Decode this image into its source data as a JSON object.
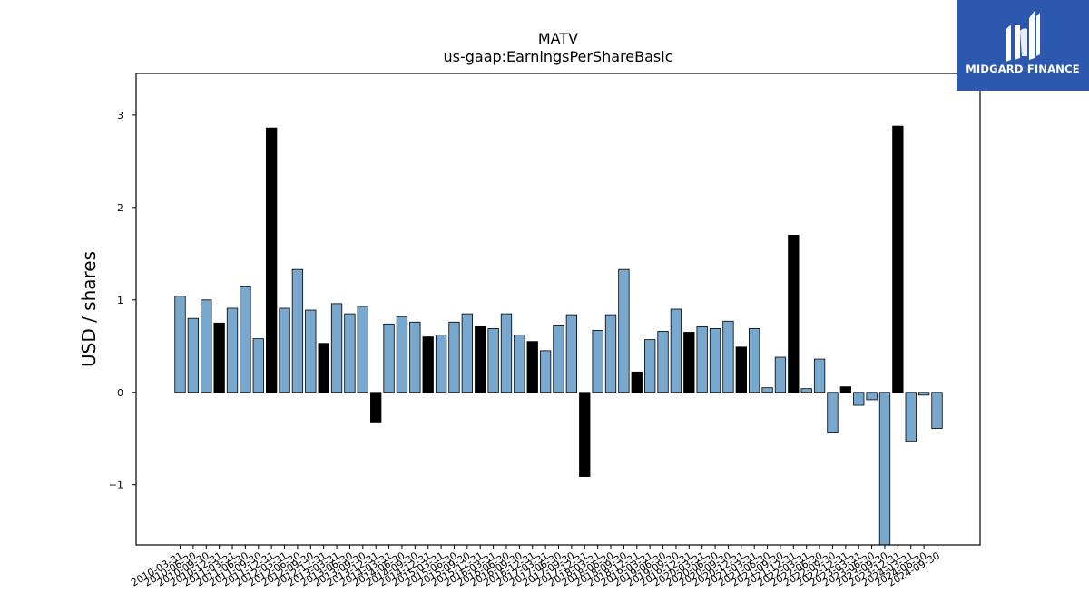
{
  "logo": {
    "text": "MIDGARD FINANCE"
  },
  "chart_data": {
    "type": "bar",
    "title": "MATV",
    "subtitle": "us-gaap:EarningsPerShareBasic",
    "xlabel": "",
    "ylabel": "USD / shares",
    "ylim": [
      -1.65,
      3.45
    ],
    "yticks": [
      -1,
      0,
      1,
      2,
      3
    ],
    "ytick_labels": [
      "−1",
      "0",
      "1",
      "2",
      "3"
    ],
    "grid": false,
    "colors": {
      "quarter": "#79a8cf",
      "annual": "#000000",
      "edge": "#000000"
    },
    "categories": [
      "2010-03-31",
      "2010-06-30",
      "2010-09-30",
      "2010-12-31",
      "2011-03-31",
      "2011-06-30",
      "2011-09-30",
      "2011-12-31",
      "2012-03-31",
      "2012-06-30",
      "2012-09-30",
      "2012-12-31",
      "2013-03-31",
      "2013-06-30",
      "2013-09-30",
      "2013-12-31",
      "2014-03-31",
      "2014-06-30",
      "2014-09-30",
      "2014-12-31",
      "2015-03-31",
      "2015-06-30",
      "2015-09-30",
      "2015-12-31",
      "2016-03-31",
      "2016-06-30",
      "2016-09-30",
      "2016-12-31",
      "2017-03-31",
      "2017-06-30",
      "2017-09-30",
      "2017-12-31",
      "2018-03-31",
      "2018-06-30",
      "2018-09-30",
      "2018-12-31",
      "2019-03-31",
      "2019-06-30",
      "2019-09-30",
      "2019-12-31",
      "2020-03-31",
      "2020-06-30",
      "2020-09-30",
      "2020-12-31",
      "2021-03-31",
      "2021-06-30",
      "2021-09-30",
      "2021-12-31",
      "2022-03-31",
      "2022-06-30",
      "2022-09-30",
      "2022-12-31",
      "2023-03-31",
      "2023-06-30",
      "2023-09-30",
      "2023-12-31",
      "2024-03-31",
      "2024-06-30",
      "2024-09-30"
    ],
    "values": [
      1.04,
      0.8,
      1.0,
      0.75,
      0.91,
      1.15,
      0.58,
      2.86,
      0.91,
      1.33,
      0.89,
      0.53,
      0.96,
      0.85,
      0.93,
      -0.32,
      0.74,
      0.82,
      0.76,
      0.6,
      0.62,
      0.76,
      0.85,
      0.71,
      0.69,
      0.85,
      0.62,
      0.55,
      0.45,
      0.72,
      0.84,
      -0.91,
      0.67,
      0.84,
      1.33,
      0.22,
      0.57,
      0.66,
      0.9,
      0.65,
      0.71,
      0.69,
      0.77,
      0.49,
      0.69,
      0.05,
      0.38,
      1.7,
      0.04,
      0.36,
      -0.44,
      0.06,
      -0.14,
      -0.08,
      -1.65,
      2.88,
      -0.53,
      -0.03,
      -0.39
    ],
    "annual": [
      false,
      false,
      false,
      true,
      false,
      false,
      false,
      true,
      false,
      false,
      false,
      true,
      false,
      false,
      false,
      true,
      false,
      false,
      false,
      true,
      false,
      false,
      false,
      true,
      false,
      false,
      false,
      true,
      false,
      false,
      false,
      true,
      false,
      false,
      false,
      true,
      false,
      false,
      false,
      true,
      false,
      false,
      false,
      true,
      false,
      false,
      false,
      true,
      false,
      false,
      false,
      true,
      false,
      false,
      false,
      true,
      false,
      false,
      false
    ]
  }
}
